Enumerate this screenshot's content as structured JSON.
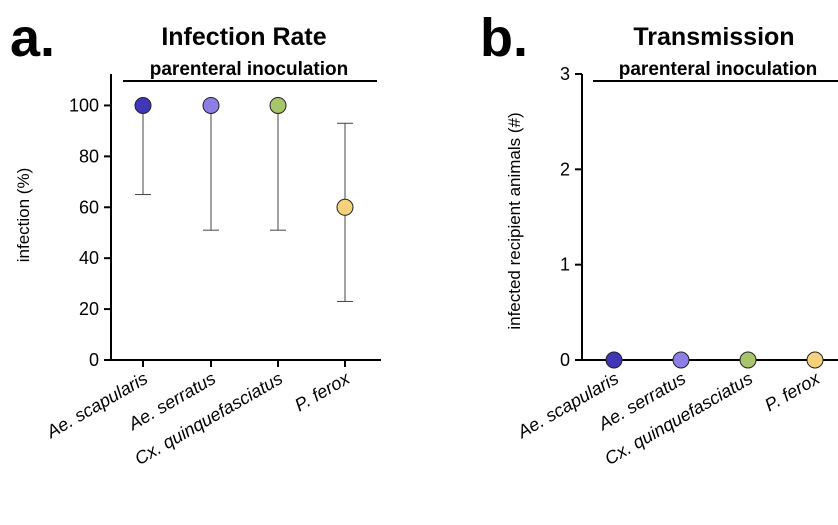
{
  "charts": [
    {
      "panel": "a.",
      "title": "Infection Rate",
      "subtitle": "parenteral inoculation",
      "ylabel": "infection (%)",
      "yticks": [
        "0",
        "20",
        "40",
        "60",
        "80",
        "100"
      ],
      "categories": [
        "Ae. scapularis",
        "Ae. serratus",
        "Cx. quinquefasciatus",
        "P. ferox"
      ]
    },
    {
      "panel": "b.",
      "title": "Transmission",
      "subtitle": "parenteral inoculation",
      "ylabel": "infected recipient animals (#)",
      "yticks": [
        "0",
        "1",
        "2",
        "3"
      ],
      "categories": [
        "Ae. scapularis",
        "Ae. serratus",
        "Cx. quinquefasciatus",
        "P. ferox"
      ]
    }
  ],
  "chart_data": [
    {
      "type": "scatter",
      "title": "Infection Rate",
      "subtitle": "parenteral inoculation",
      "ylabel": "infection (%)",
      "ylim": [
        0,
        110
      ],
      "categories": [
        "Ae. scapularis",
        "Ae. serratus",
        "Cx. quinquefasciatus",
        "P. ferox"
      ],
      "values": [
        100,
        100,
        100,
        60
      ],
      "error_low": [
        65,
        51,
        51,
        23
      ],
      "error_high": [
        100,
        100,
        100,
        93
      ],
      "colors": [
        "#3f36b8",
        "#8b7fe6",
        "#a9c56b",
        "#f6d27c"
      ]
    },
    {
      "type": "scatter",
      "title": "Transmission",
      "subtitle": "parenteral inoculation",
      "ylabel": "infected recipient animals (#)",
      "ylim": [
        0,
        3
      ],
      "categories": [
        "Ae. scapularis",
        "Ae. serratus",
        "Cx. quinquefasciatus",
        "P. ferox"
      ],
      "values": [
        0,
        0,
        0,
        0
      ],
      "colors": [
        "#3f36b8",
        "#8b7fe6",
        "#a9c56b",
        "#f6d27c"
      ]
    }
  ]
}
